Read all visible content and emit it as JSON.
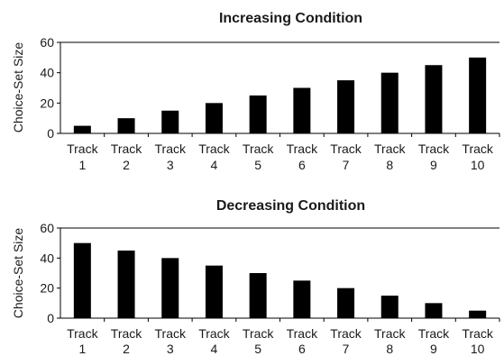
{
  "chart_data": [
    {
      "type": "bar",
      "title": "Increasing Condition",
      "ylabel": "Choice-Set Size",
      "xlabel": "",
      "ylim": [
        0,
        60
      ],
      "yticks": [
        0,
        20,
        40,
        60
      ],
      "categories": [
        [
          "Track",
          "1"
        ],
        [
          "Track",
          "2"
        ],
        [
          "Track",
          "3"
        ],
        [
          "Track",
          "4"
        ],
        [
          "Track",
          "5"
        ],
        [
          "Track",
          "6"
        ],
        [
          "Track",
          "7"
        ],
        [
          "Track",
          "8"
        ],
        [
          "Track",
          "9"
        ],
        [
          "Track",
          "10"
        ]
      ],
      "values": [
        5,
        10,
        15,
        20,
        25,
        30,
        35,
        40,
        45,
        50
      ],
      "grid": false,
      "bar_color": "#000000"
    },
    {
      "type": "bar",
      "title": "Decreasing Condition",
      "ylabel": "Choice-Set Size",
      "xlabel": "",
      "ylim": [
        0,
        60
      ],
      "yticks": [
        0,
        20,
        40,
        60
      ],
      "categories": [
        [
          "Track",
          "1"
        ],
        [
          "Track",
          "2"
        ],
        [
          "Track",
          "3"
        ],
        [
          "Track",
          "4"
        ],
        [
          "Track",
          "5"
        ],
        [
          "Track",
          "6"
        ],
        [
          "Track",
          "7"
        ],
        [
          "Track",
          "8"
        ],
        [
          "Track",
          "9"
        ],
        [
          "Track",
          "10"
        ]
      ],
      "values": [
        50,
        45,
        40,
        35,
        30,
        25,
        20,
        15,
        10,
        5
      ],
      "grid": false,
      "bar_color": "#000000"
    }
  ]
}
